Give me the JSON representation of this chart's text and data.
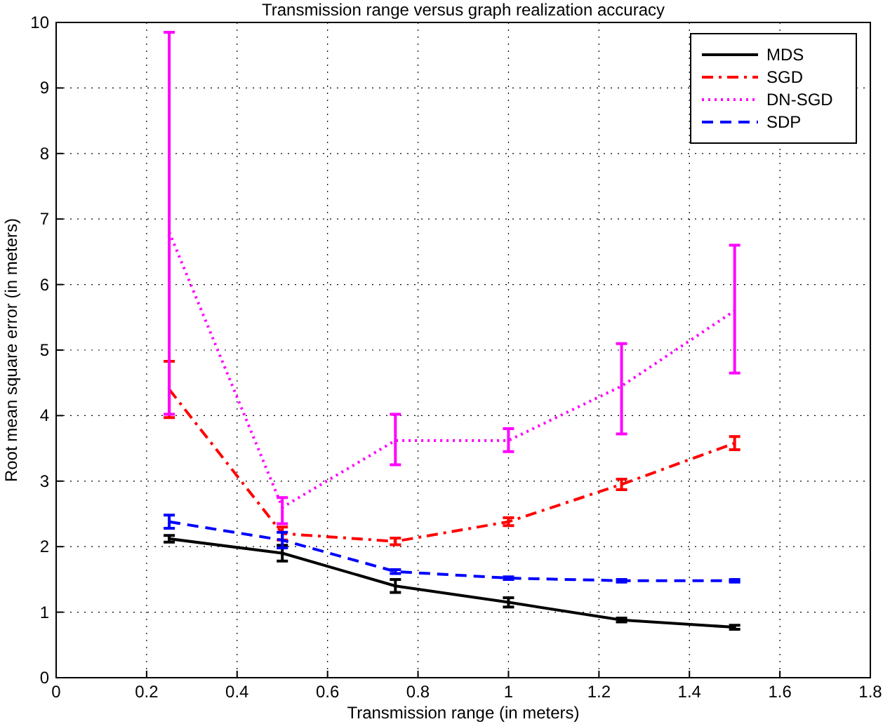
{
  "chart_data": {
    "type": "line",
    "title": "Transmission range versus graph realization accuracy",
    "xlabel": "Transmission range (in meters)",
    "ylabel": "Root mean square error (in meters)",
    "x": [
      0.25,
      0.5,
      0.75,
      1.0,
      1.25,
      1.5
    ],
    "xlim": [
      0,
      1.8
    ],
    "xticks": [
      0,
      0.2,
      0.4,
      0.6,
      0.8,
      1,
      1.2,
      1.4,
      1.6,
      1.8
    ],
    "ylim": [
      0,
      10
    ],
    "yticks": [
      0,
      1,
      2,
      3,
      4,
      5,
      6,
      7,
      8,
      9,
      10
    ],
    "grid": true,
    "legend": "top right",
    "series": [
      {
        "name": "MDS",
        "color": "#000000",
        "line_style": "solid",
        "values": [
          2.12,
          1.9,
          1.4,
          1.15,
          0.88,
          0.77
        ],
        "errors": [
          0.05,
          0.12,
          0.1,
          0.07,
          0.03,
          0.03
        ]
      },
      {
        "name": "SGD",
        "color": "#ff0000",
        "line_style": "dashdot",
        "values": [
          4.4,
          2.2,
          2.08,
          2.38,
          2.95,
          3.58
        ],
        "errors": [
          0.43,
          0.1,
          0.05,
          0.06,
          0.08,
          0.1
        ]
      },
      {
        "name": "DN-SGD",
        "color": "#ff00ff",
        "line_style": "dotted",
        "values": [
          6.8,
          2.6,
          3.62,
          3.62,
          4.45,
          5.6
        ],
        "errors": [
          [
            4.02,
            9.85
          ],
          [
            2.35,
            2.75
          ],
          [
            3.25,
            4.02
          ],
          [
            3.45,
            3.8
          ],
          [
            3.72,
            5.1
          ],
          [
            4.65,
            6.6
          ]
        ]
      },
      {
        "name": "SDP",
        "color": "#0000ff",
        "line_style": "dashed",
        "values": [
          2.38,
          2.1,
          1.62,
          1.52,
          1.48,
          1.48
        ],
        "errors": [
          0.1,
          0.12,
          0.03,
          0.02,
          0.02,
          0.02
        ]
      }
    ]
  }
}
